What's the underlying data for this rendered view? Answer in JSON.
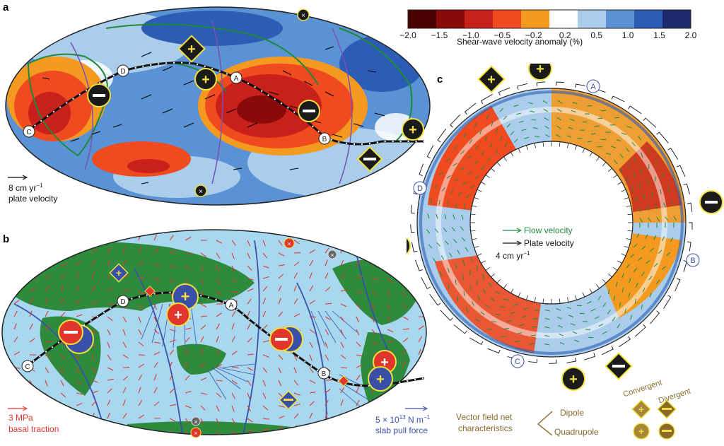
{
  "panels": {
    "a": "a",
    "b": "b",
    "c": "c"
  },
  "colorbar": {
    "ticks": [
      "−2.0",
      "−1.5",
      "−1.0",
      "−0.5",
      "−0.2",
      "0.2",
      "0.5",
      "1.0",
      "1.5",
      "2.0"
    ],
    "label": "Shear-wave velocity anomaly (%)",
    "colors": [
      "#4a0000",
      "#8a0a0a",
      "#c8201a",
      "#f04a20",
      "#f49a20",
      "#ffffff",
      "#a9cdea",
      "#5a92d4",
      "#2d5cb4",
      "#1c2a6c"
    ]
  },
  "panel_a": {
    "points": [
      "A",
      "B",
      "C",
      "D"
    ],
    "scale_value": "8 cm yr",
    "scale_exp": "−1",
    "scale_label": "plate velocity"
  },
  "panel_b": {
    "points": [
      "A",
      "B",
      "C",
      "D"
    ],
    "traction_value": "3 MPa",
    "traction_label": "basal traction",
    "slab_value": "5 × 10",
    "slab_exp": "13",
    "slab_unit": " N m",
    "slab_unit_exp": "−1",
    "slab_label": "slab pull force"
  },
  "panel_c": {
    "points": [
      "A",
      "B",
      "C",
      "D"
    ],
    "legend_flow": "Flow velocity",
    "legend_plate": "Plate velocity",
    "scale_value": "4 cm yr",
    "scale_exp": "−1"
  },
  "key": {
    "title_line1": "Vector field net",
    "title_line2": "characteristics",
    "convergent": "Convergent",
    "divergent": "Divergent",
    "dipole": "Dipole",
    "quadrupole": "Quadrupole"
  },
  "colors": {
    "ocean_blue": "#a8d8f0",
    "land_green": "#2e8b3e",
    "traction_red": "#e0362c",
    "slab_blue": "#3a4fa8",
    "symbol_yellow": "#f0e040",
    "key_brown": "#8a6a2a"
  }
}
